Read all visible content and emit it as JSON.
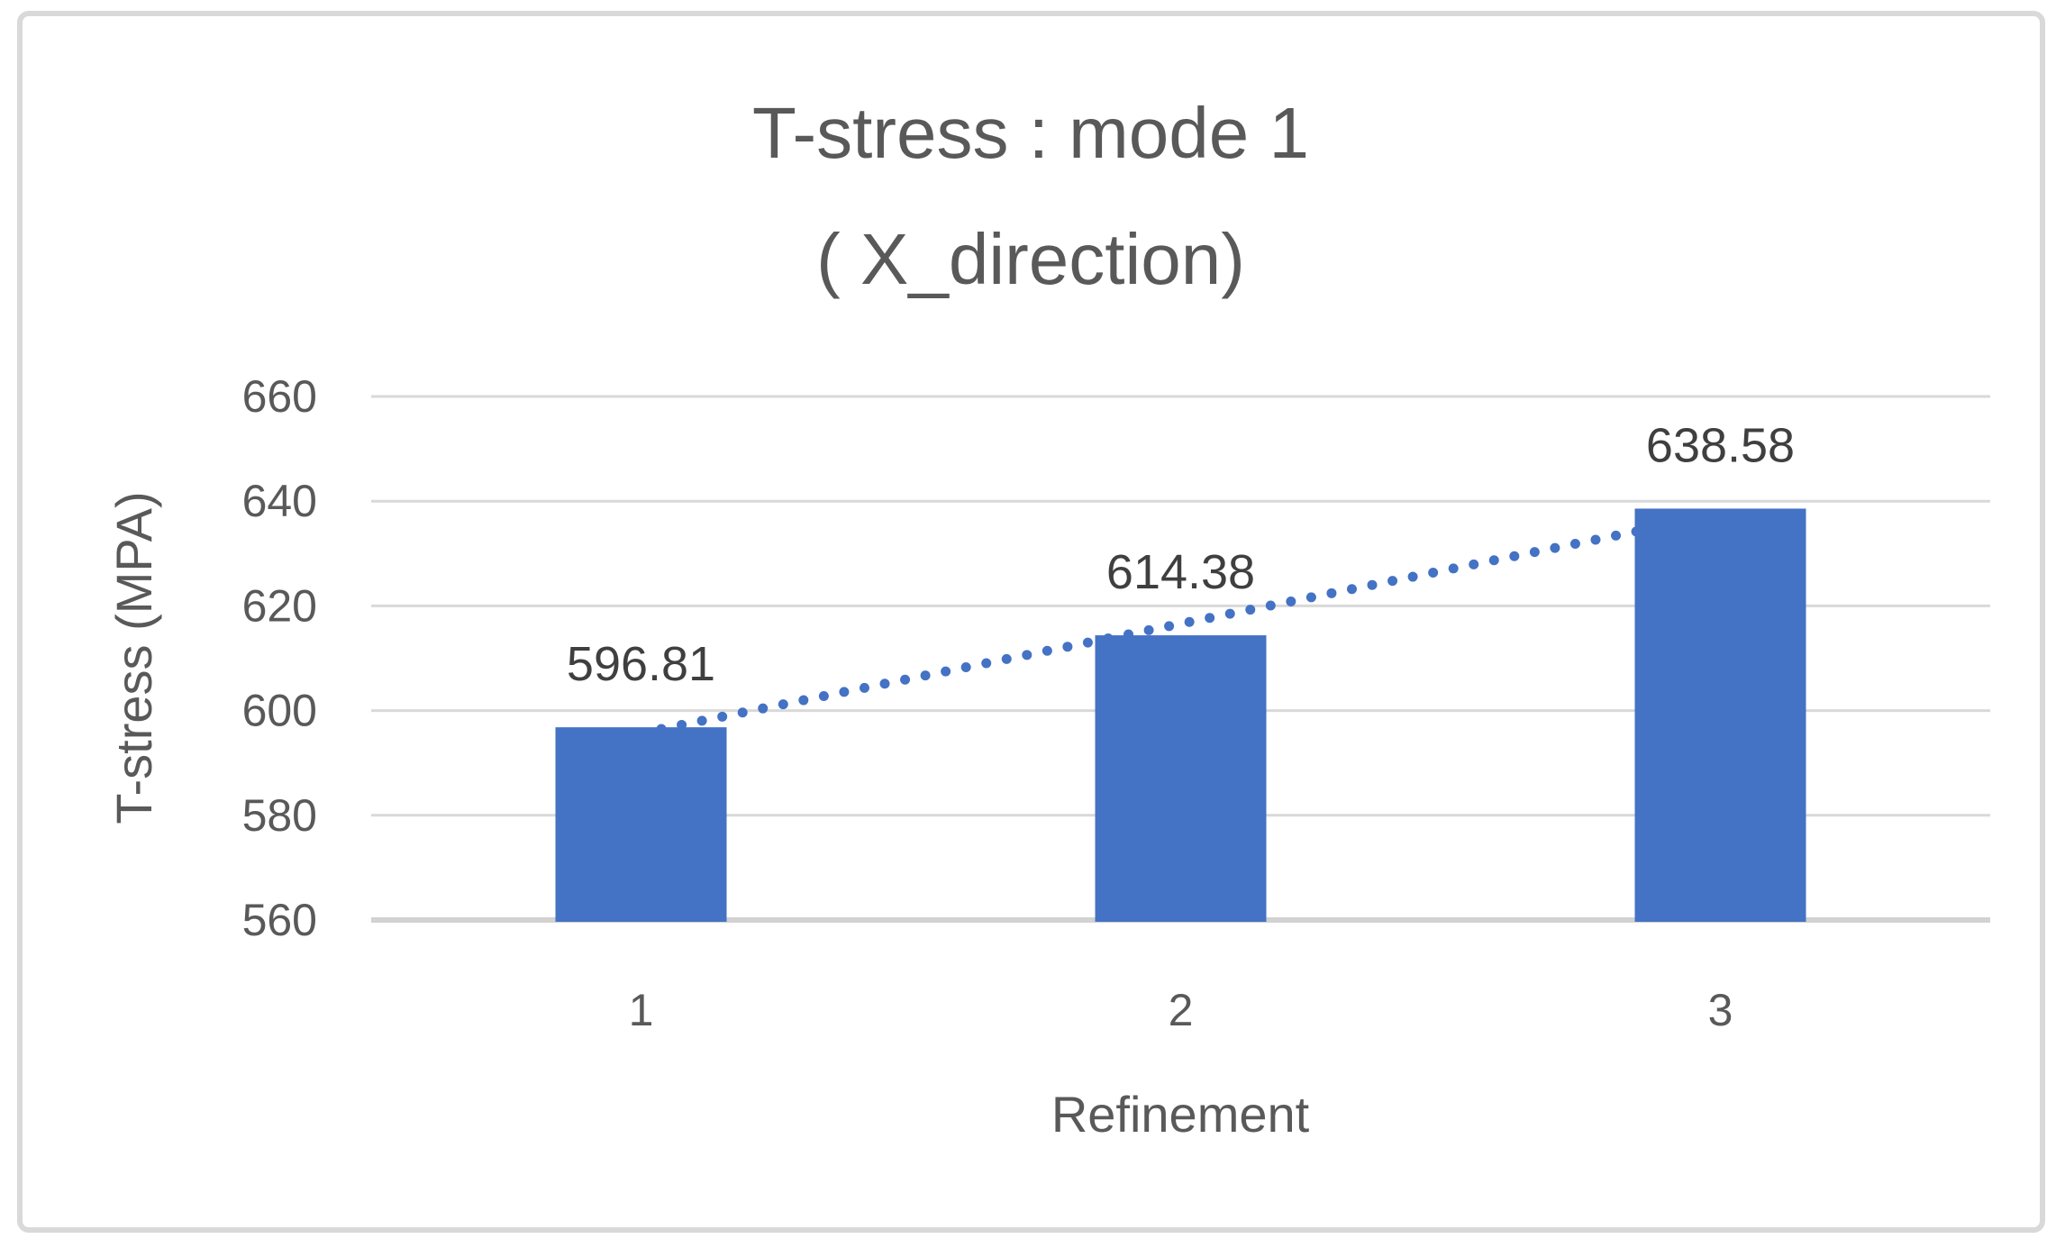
{
  "chart_data": {
    "type": "bar",
    "title_line1": "T-stress : mode 1",
    "title_line2": "( X_direction)",
    "categories": [
      "1",
      "2",
      "3"
    ],
    "values": [
      596.81,
      614.38,
      638.58
    ],
    "data_labels": [
      "596.81",
      "614.38",
      "638.58"
    ],
    "xlabel": "Refinement",
    "ylabel": "T-stress (MPA)",
    "ylim": [
      560,
      660
    ],
    "yticks": [
      560,
      580,
      600,
      620,
      640,
      660
    ],
    "ytick_labels": [
      "560",
      "580",
      "600",
      "620",
      "640",
      "660"
    ],
    "grid": true,
    "legend": "none",
    "bar_color": "#4472C4",
    "trendline": {
      "style": "dotted",
      "color": "#4472C4",
      "fit_endpoint_values": [
        595.7,
        637.47
      ]
    }
  },
  "colors": {
    "frame_border": "#D9D9D9",
    "gridline": "#D9D9D9",
    "axis_line": "#D2D2D2",
    "title_text": "#595959",
    "axis_text": "#595959",
    "data_label_text": "#3F3F3F",
    "background": "#FFFFFF"
  }
}
